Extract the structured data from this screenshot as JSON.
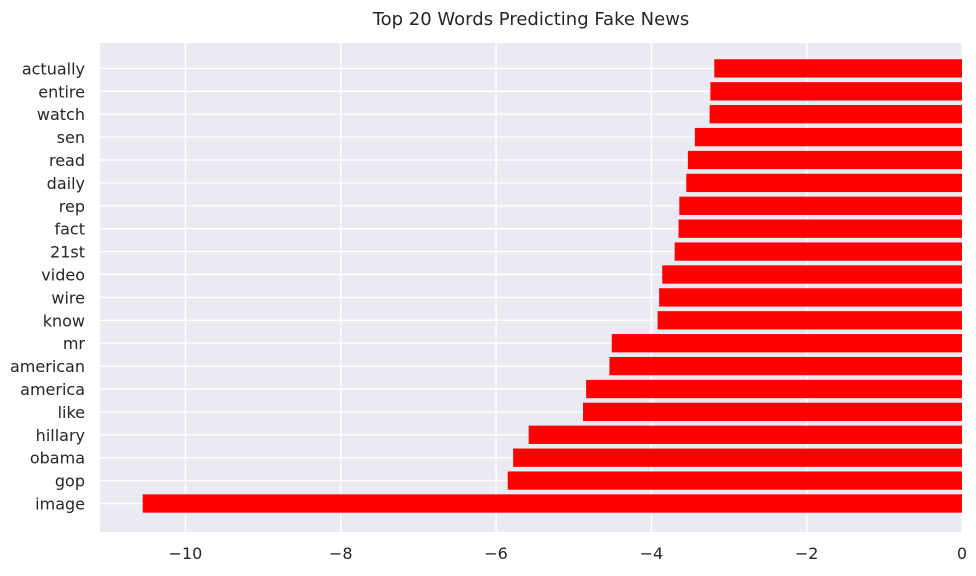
{
  "chart_data": {
    "type": "bar",
    "orientation": "horizontal",
    "title": "Top 20 Words Predicting Fake News",
    "xlabel": "",
    "ylabel": "",
    "categories": [
      "image",
      "gop",
      "obama",
      "hillary",
      "like",
      "america",
      "american",
      "mr",
      "know",
      "wire",
      "video",
      "21st",
      "fact",
      "rep",
      "daily",
      "read",
      "sen",
      "watch",
      "entire",
      "actually"
    ],
    "values": [
      -10.55,
      -5.85,
      -5.78,
      -5.58,
      -4.88,
      -4.84,
      -4.54,
      -4.51,
      -3.92,
      -3.9,
      -3.86,
      -3.7,
      -3.65,
      -3.64,
      -3.55,
      -3.53,
      -3.44,
      -3.25,
      -3.24,
      -3.19
    ],
    "xlim": [
      -11.1,
      0
    ],
    "xticks": [
      -10,
      -8,
      -6,
      -4,
      -2,
      0
    ],
    "xtick_labels": [
      "−10",
      "−8",
      "−6",
      "−4",
      "−2",
      "0"
    ],
    "grid": true,
    "bar_color": "#ff0000",
    "background_color": "#eaeaf2",
    "grid_color": "#ffffff"
  }
}
